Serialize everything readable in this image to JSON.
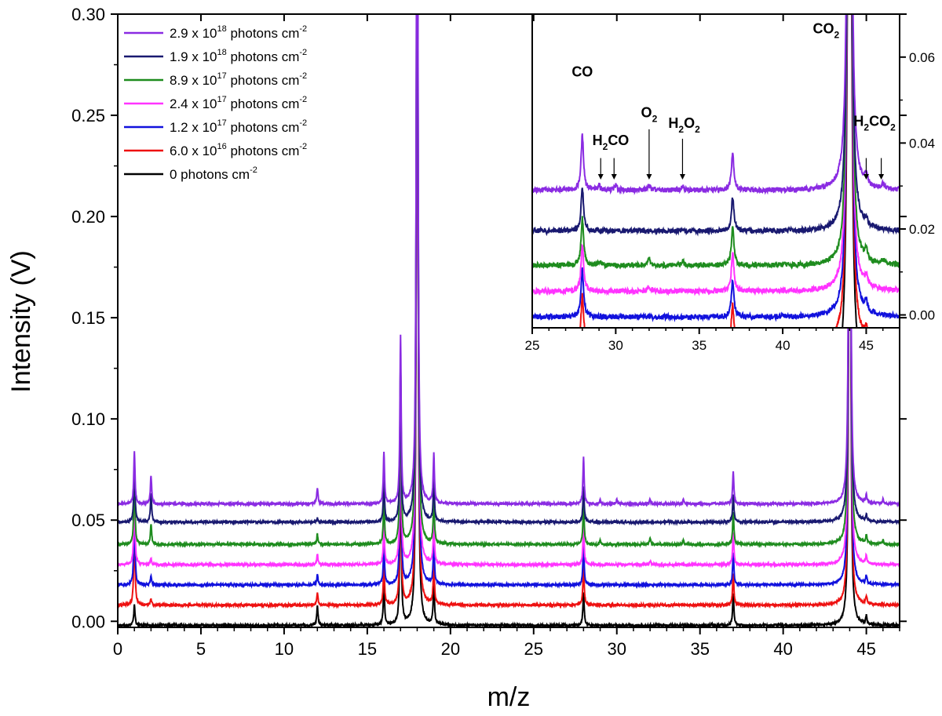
{
  "chart_data": {
    "type": "line",
    "xlabel": "m/z",
    "ylabel": "Intensity (V)",
    "xlim": [
      0,
      47
    ],
    "ylim": [
      -0.003,
      0.3
    ],
    "xticks": [
      "0",
      "5",
      "10",
      "15",
      "20",
      "25",
      "30",
      "35",
      "40",
      "45"
    ],
    "yticks": [
      "0.00",
      "0.05",
      "0.10",
      "0.15",
      "0.20",
      "0.25",
      "0.30"
    ],
    "legend_position": "top-left",
    "legend": [
      {
        "prefix": "2.9 x 10",
        "exp": "18",
        "unit": " photons cm",
        "unit_exp": "-2",
        "color": "#8a2be2"
      },
      {
        "prefix": "1.9 x 10",
        "exp": "18",
        "unit": " photons cm",
        "unit_exp": "-2",
        "color": "#191970"
      },
      {
        "prefix": "8.9 x 10",
        "exp": "17",
        "unit": " photons cm",
        "unit_exp": "-2",
        "color": "#1e8c1e"
      },
      {
        "prefix": "2.4 x 10",
        "exp": "17",
        "unit": " photons cm",
        "unit_exp": "-2",
        "color": "#ff33ff"
      },
      {
        "prefix": "1.2 x 10",
        "exp": "17",
        "unit": " photons cm",
        "unit_exp": "-2",
        "color": "#1111dd"
      },
      {
        "prefix": "6.0 x 10",
        "exp": "16",
        "unit": " photons cm",
        "unit_exp": "-2",
        "color": "#ee1111"
      },
      {
        "prefix": "0  photons cm",
        "exp": "",
        "unit": "",
        "unit_exp": "-2",
        "color": "#000000"
      }
    ],
    "series": [
      {
        "name": "2.9e18",
        "color": "#8a2be2",
        "offset": 0.058,
        "peaks": [
          [
            1,
            0.026
          ],
          [
            2,
            0.014
          ],
          [
            12,
            0.008
          ],
          [
            16,
            0.025
          ],
          [
            17,
            0.083
          ],
          [
            18,
            0.5
          ],
          [
            19,
            0.024
          ],
          [
            28,
            0.023
          ],
          [
            29,
            0.002
          ],
          [
            30,
            0.002
          ],
          [
            32,
            0.002
          ],
          [
            34,
            0.002
          ],
          [
            37,
            0.016
          ],
          [
            44,
            0.5
          ],
          [
            45,
            0.004
          ],
          [
            46,
            0.002
          ]
        ]
      },
      {
        "name": "1.9e18",
        "color": "#191970",
        "offset": 0.049,
        "peaks": [
          [
            1,
            0.03
          ],
          [
            2,
            0.014
          ],
          [
            12,
            0.002
          ],
          [
            16,
            0.02
          ],
          [
            17,
            0.08
          ],
          [
            18,
            0.5
          ],
          [
            19,
            0.02
          ],
          [
            28,
            0.018
          ],
          [
            37,
            0.014
          ],
          [
            44,
            0.5
          ],
          [
            45,
            0.003
          ]
        ]
      },
      {
        "name": "8.9e17",
        "color": "#1e8c1e",
        "offset": 0.038,
        "peaks": [
          [
            1,
            0.034
          ],
          [
            2,
            0.01
          ],
          [
            12,
            0.005
          ],
          [
            16,
            0.022
          ],
          [
            17,
            0.09
          ],
          [
            18,
            0.5
          ],
          [
            19,
            0.022
          ],
          [
            28,
            0.02
          ],
          [
            29,
            0.002
          ],
          [
            32,
            0.003
          ],
          [
            34,
            0.002
          ],
          [
            37,
            0.016
          ],
          [
            44,
            0.5
          ],
          [
            45,
            0.004
          ],
          [
            46,
            0.002
          ]
        ]
      },
      {
        "name": "2.4e17",
        "color": "#ff33ff",
        "offset": 0.028,
        "peaks": [
          [
            1,
            0.036
          ],
          [
            2,
            0.003
          ],
          [
            12,
            0.005
          ],
          [
            16,
            0.02
          ],
          [
            17,
            0.09
          ],
          [
            18,
            0.5
          ],
          [
            19,
            0.02
          ],
          [
            28,
            0.02
          ],
          [
            32,
            0.002
          ],
          [
            37,
            0.016
          ],
          [
            44,
            0.5
          ],
          [
            45,
            0.004
          ]
        ]
      },
      {
        "name": "1.2e17",
        "color": "#1111dd",
        "offset": 0.018,
        "peaks": [
          [
            1,
            0.038
          ],
          [
            2,
            0.004
          ],
          [
            12,
            0.005
          ],
          [
            16,
            0.02
          ],
          [
            17,
            0.09
          ],
          [
            18,
            0.5
          ],
          [
            19,
            0.02
          ],
          [
            28,
            0.02
          ],
          [
            37,
            0.016
          ],
          [
            44,
            0.5
          ],
          [
            45,
            0.004
          ]
        ]
      },
      {
        "name": "6.0e16",
        "color": "#ee1111",
        "offset": 0.008,
        "peaks": [
          [
            1,
            0.04
          ],
          [
            2,
            0.003
          ],
          [
            12,
            0.006
          ],
          [
            16,
            0.02
          ],
          [
            17,
            0.09
          ],
          [
            18,
            0.5
          ],
          [
            19,
            0.02
          ],
          [
            28,
            0.02
          ],
          [
            37,
            0.016
          ],
          [
            44,
            0.5
          ],
          [
            45,
            0.004
          ]
        ]
      },
      {
        "name": "0",
        "color": "#000000",
        "offset": -0.002,
        "peaks": [
          [
            1,
            0.01
          ],
          [
            12,
            0.01
          ],
          [
            16,
            0.02
          ],
          [
            17,
            0.09
          ],
          [
            18,
            0.5
          ],
          [
            19,
            0.02
          ],
          [
            28,
            0.016
          ],
          [
            37,
            0.016
          ],
          [
            44,
            0.5
          ],
          [
            45,
            0.004
          ]
        ]
      }
    ],
    "inset": {
      "xlim": [
        25,
        47
      ],
      "ylim": [
        -0.003,
        0.07
      ],
      "xticks": [
        "25",
        "30",
        "35",
        "40",
        "45"
      ],
      "yticks": [
        "0.00",
        "0.02",
        "0.04",
        "0.06"
      ],
      "offsets": [
        0.029,
        0.0195,
        0.0115,
        0.0055,
        -0.0005,
        -0.0065,
        -0.0145
      ],
      "annotations": [
        {
          "label": "CO",
          "sub": "",
          "x": 28.0,
          "y": 0.0555
        },
        {
          "label": "H",
          "sub": "2",
          "tail": "CO",
          "x": 29.7,
          "y": 0.0395
        },
        {
          "label": "O",
          "sub": "2",
          "tail": "",
          "x": 32.0,
          "y": 0.046
        },
        {
          "label": "H",
          "sub": "2",
          "tail": "O",
          "sub2": "2",
          "x": 34.1,
          "y": 0.0435
        },
        {
          "label": "CO",
          "sub": "2",
          "tail": "",
          "x": 42.6,
          "y": 0.0655
        },
        {
          "label": "H",
          "sub": "2",
          "tail": "CO",
          "sub2": "2",
          "x": 45.5,
          "y": 0.044
        }
      ],
      "arrows": [
        {
          "x": 29.1,
          "y_from": 0.0365,
          "y_to": 0.0315
        },
        {
          "x": 29.9,
          "y_from": 0.0365,
          "y_to": 0.0315
        },
        {
          "x": 32.0,
          "y_from": 0.0432,
          "y_to": 0.0315
        },
        {
          "x": 34.0,
          "y_from": 0.041,
          "y_to": 0.0315
        },
        {
          "x": 45.0,
          "y_from": 0.0365,
          "y_to": 0.0315
        },
        {
          "x": 45.9,
          "y_from": 0.0365,
          "y_to": 0.0315
        }
      ]
    }
  }
}
